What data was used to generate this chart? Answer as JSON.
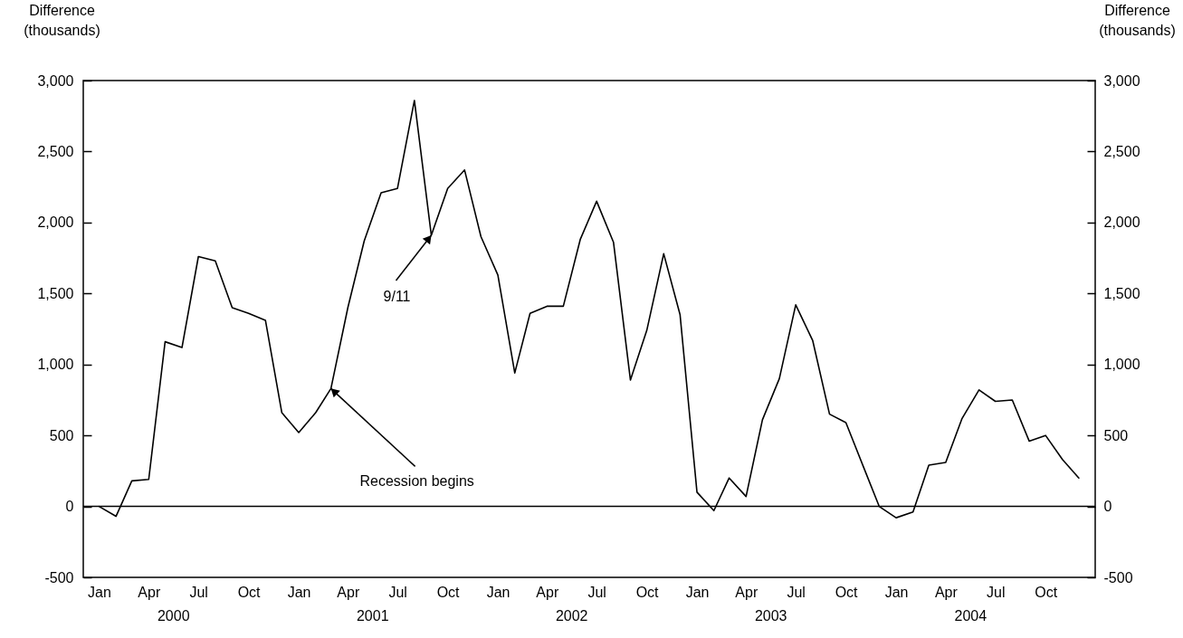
{
  "chart_data": {
    "type": "line",
    "ylabel": "Difference (thousands)",
    "y2label": "Difference (thousands)",
    "x": [
      "2000-01",
      "2000-02",
      "2000-03",
      "2000-04",
      "2000-05",
      "2000-06",
      "2000-07",
      "2000-08",
      "2000-09",
      "2000-10",
      "2000-11",
      "2000-12",
      "2001-01",
      "2001-02",
      "2001-03",
      "2001-04",
      "2001-05",
      "2001-06",
      "2001-07",
      "2001-08",
      "2001-09",
      "2001-10",
      "2001-11",
      "2001-12",
      "2002-01",
      "2002-02",
      "2002-03",
      "2002-04",
      "2002-05",
      "2002-06",
      "2002-07",
      "2002-08",
      "2002-09",
      "2002-10",
      "2002-11",
      "2002-12",
      "2003-01",
      "2003-02",
      "2003-03",
      "2003-04",
      "2003-05",
      "2003-06",
      "2003-07",
      "2003-08",
      "2003-09",
      "2003-10",
      "2003-11",
      "2003-12",
      "2004-01",
      "2004-02",
      "2004-03",
      "2004-04",
      "2004-05",
      "2004-06",
      "2004-07",
      "2004-08",
      "2004-09",
      "2004-10",
      "2004-11",
      "2004-12"
    ],
    "series": [
      {
        "color": "#000000",
        "values": [
          0,
          -70,
          180,
          190,
          1160,
          1120,
          1760,
          1730,
          1400,
          1360,
          1310,
          660,
          520,
          660,
          830,
          1400,
          1870,
          2210,
          2240,
          2860,
          1910,
          2240,
          2370,
          1900,
          1630,
          940,
          1360,
          1410,
          1410,
          1880,
          2150,
          1860,
          890,
          1240,
          1780,
          1350,
          100,
          -30,
          200,
          70,
          610,
          900,
          1420,
          1170,
          650,
          590,
          290,
          0,
          -80,
          -40,
          290,
          310,
          620,
          820,
          740,
          750,
          460,
          500,
          330,
          200
        ]
      }
    ],
    "xlim": [
      "1999-12-03",
      "2004-12-31"
    ],
    "xticks": [
      {
        "value": "2000-01",
        "label": "Jan"
      },
      {
        "value": "2000-04",
        "label": "Apr"
      },
      {
        "value": "2000-07",
        "label": "Jul"
      },
      {
        "value": "2000-10",
        "label": "Oct"
      },
      {
        "value": "2001-01",
        "label": "Jan"
      },
      {
        "value": "2001-04",
        "label": "Apr"
      },
      {
        "value": "2001-07",
        "label": "Jul"
      },
      {
        "value": "2001-10",
        "label": "Oct"
      },
      {
        "value": "2002-01",
        "label": "Jan"
      },
      {
        "value": "2002-04",
        "label": "Apr"
      },
      {
        "value": "2002-07",
        "label": "Jul"
      },
      {
        "value": "2002-10",
        "label": "Oct"
      },
      {
        "value": "2003-01",
        "label": "Jan"
      },
      {
        "value": "2003-04",
        "label": "Apr"
      },
      {
        "value": "2003-07",
        "label": "Jul"
      },
      {
        "value": "2003-10",
        "label": "Oct"
      },
      {
        "value": "2004-01",
        "label": "Jan"
      },
      {
        "value": "2004-04",
        "label": "Apr"
      },
      {
        "value": "2004-07",
        "label": "Jul"
      },
      {
        "value": "2004-10",
        "label": "Oct"
      }
    ],
    "ylim": [
      -500,
      3000
    ],
    "yticks": [
      -500,
      0,
      500,
      {
        "value": 1000,
        "label": "1,000"
      },
      {
        "value": 1500,
        "label": "1,500"
      },
      {
        "value": 2000,
        "label": "2,000"
      },
      {
        "value": 2500,
        "label": "2,500"
      },
      {
        "value": 3000,
        "label": "3,000"
      }
    ],
    "y2lim": [
      -500,
      3000
    ],
    "y2ticks": [
      -500,
      0,
      500,
      {
        "value": 1000,
        "label": "1,000"
      },
      {
        "value": 1500,
        "label": "1,500"
      },
      {
        "value": 2000,
        "label": "2,000"
      },
      {
        "value": 2500,
        "label": "2,500"
      },
      {
        "value": 3000,
        "label": "3,000"
      }
    ],
    "ref_lines": [
      {
        "axis": "y",
        "value": 0,
        "color": "#000000"
      }
    ],
    "annotations": [
      {
        "text": "Recession begins",
        "x": "2001-03",
        "y": 830
      },
      {
        "text": "9/11",
        "x": "2001-09",
        "y": 1910
      },
      "2000",
      "2001",
      "2002",
      "2003",
      "2004"
    ],
    "grid": false,
    "marker": "none",
    "line_style": "solid"
  }
}
